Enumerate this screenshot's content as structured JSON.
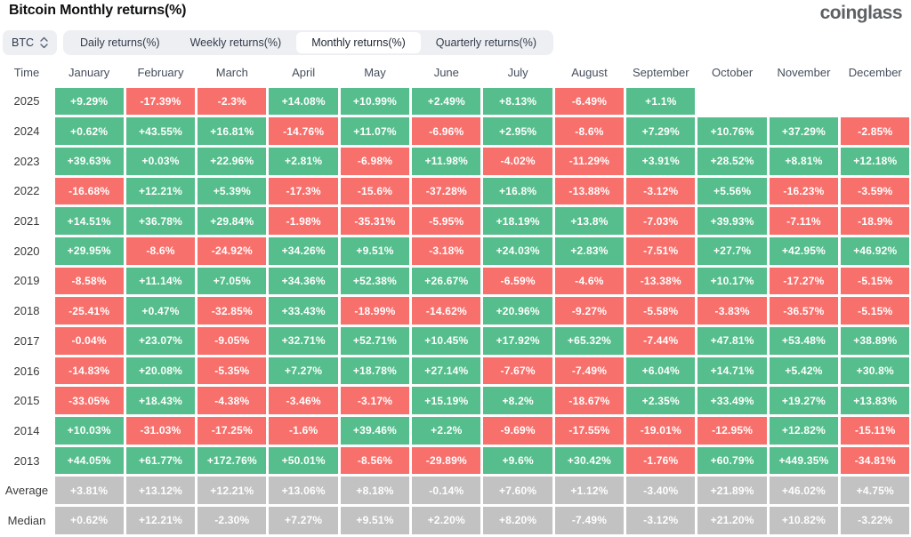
{
  "header": {
    "title": "Bitcoin Monthly returns(%)",
    "brand": "coinglass"
  },
  "controls": {
    "symbol": "BTC",
    "symbol_icon": "up-down-chevron-icon",
    "tabs": [
      {
        "label": "Daily returns(%)",
        "active": false
      },
      {
        "label": "Weekly returns(%)",
        "active": false
      },
      {
        "label": "Monthly returns(%)",
        "active": true
      },
      {
        "label": "Quarterly returns(%)",
        "active": false
      }
    ]
  },
  "colors": {
    "positive": "#55be8c",
    "negative": "#f7706c",
    "summary": "#c2c2c3",
    "tab_bg": "#edeff3",
    "active_tab_bg": "#ffffff"
  },
  "table": {
    "time_header": "Time"
  },
  "chart_data": {
    "type": "heatmap",
    "title": "Bitcoin Monthly returns(%)",
    "columns": [
      "January",
      "February",
      "March",
      "April",
      "May",
      "June",
      "July",
      "August",
      "September",
      "October",
      "November",
      "December"
    ],
    "rows": [
      {
        "label": "2025",
        "summary": false,
        "values": [
          "+9.29%",
          "-17.39%",
          "-2.3%",
          "+14.08%",
          "+10.99%",
          "+2.49%",
          "+8.13%",
          "-6.49%",
          "+1.1%",
          null,
          null,
          null
        ]
      },
      {
        "label": "2024",
        "summary": false,
        "values": [
          "+0.62%",
          "+43.55%",
          "+16.81%",
          "-14.76%",
          "+11.07%",
          "-6.96%",
          "+2.95%",
          "-8.6%",
          "+7.29%",
          "+10.76%",
          "+37.29%",
          "-2.85%"
        ]
      },
      {
        "label": "2023",
        "summary": false,
        "values": [
          "+39.63%",
          "+0.03%",
          "+22.96%",
          "+2.81%",
          "-6.98%",
          "+11.98%",
          "-4.02%",
          "-11.29%",
          "+3.91%",
          "+28.52%",
          "+8.81%",
          "+12.18%"
        ]
      },
      {
        "label": "2022",
        "summary": false,
        "values": [
          "-16.68%",
          "+12.21%",
          "+5.39%",
          "-17.3%",
          "-15.6%",
          "-37.28%",
          "+16.8%",
          "-13.88%",
          "-3.12%",
          "+5.56%",
          "-16.23%",
          "-3.59%"
        ]
      },
      {
        "label": "2021",
        "summary": false,
        "values": [
          "+14.51%",
          "+36.78%",
          "+29.84%",
          "-1.98%",
          "-35.31%",
          "-5.95%",
          "+18.19%",
          "+13.8%",
          "-7.03%",
          "+39.93%",
          "-7.11%",
          "-18.9%"
        ]
      },
      {
        "label": "2020",
        "summary": false,
        "values": [
          "+29.95%",
          "-8.6%",
          "-24.92%",
          "+34.26%",
          "+9.51%",
          "-3.18%",
          "+24.03%",
          "+2.83%",
          "-7.51%",
          "+27.7%",
          "+42.95%",
          "+46.92%"
        ]
      },
      {
        "label": "2019",
        "summary": false,
        "values": [
          "-8.58%",
          "+11.14%",
          "+7.05%",
          "+34.36%",
          "+52.38%",
          "+26.67%",
          "-6.59%",
          "-4.6%",
          "-13.38%",
          "+10.17%",
          "-17.27%",
          "-5.15%"
        ]
      },
      {
        "label": "2018",
        "summary": false,
        "values": [
          "-25.41%",
          "+0.47%",
          "-32.85%",
          "+33.43%",
          "-18.99%",
          "-14.62%",
          "+20.96%",
          "-9.27%",
          "-5.58%",
          "-3.83%",
          "-36.57%",
          "-5.15%"
        ]
      },
      {
        "label": "2017",
        "summary": false,
        "values": [
          "-0.04%",
          "+23.07%",
          "-9.05%",
          "+32.71%",
          "+52.71%",
          "+10.45%",
          "+17.92%",
          "+65.32%",
          "-7.44%",
          "+47.81%",
          "+53.48%",
          "+38.89%"
        ]
      },
      {
        "label": "2016",
        "summary": false,
        "values": [
          "-14.83%",
          "+20.08%",
          "-5.35%",
          "+7.27%",
          "+18.78%",
          "+27.14%",
          "-7.67%",
          "-7.49%",
          "+6.04%",
          "+14.71%",
          "+5.42%",
          "+30.8%"
        ]
      },
      {
        "label": "2015",
        "summary": false,
        "values": [
          "-33.05%",
          "+18.43%",
          "-4.38%",
          "-3.46%",
          "-3.17%",
          "+15.19%",
          "+8.2%",
          "-18.67%",
          "+2.35%",
          "+33.49%",
          "+19.27%",
          "+13.83%"
        ]
      },
      {
        "label": "2014",
        "summary": false,
        "values": [
          "+10.03%",
          "-31.03%",
          "-17.25%",
          "-1.6%",
          "+39.46%",
          "+2.2%",
          "-9.69%",
          "-17.55%",
          "-19.01%",
          "-12.95%",
          "+12.82%",
          "-15.11%"
        ]
      },
      {
        "label": "2013",
        "summary": false,
        "values": [
          "+44.05%",
          "+61.77%",
          "+172.76%",
          "+50.01%",
          "-8.56%",
          "-29.89%",
          "+9.6%",
          "+30.42%",
          "-1.76%",
          "+60.79%",
          "+449.35%",
          "-34.81%"
        ]
      },
      {
        "label": "Average",
        "summary": true,
        "values": [
          "+3.81%",
          "+13.12%",
          "+12.21%",
          "+13.06%",
          "+8.18%",
          "-0.14%",
          "+7.60%",
          "+1.12%",
          "-3.40%",
          "+21.89%",
          "+46.02%",
          "+4.75%"
        ]
      },
      {
        "label": "Median",
        "summary": true,
        "values": [
          "+0.62%",
          "+12.21%",
          "-2.30%",
          "+7.27%",
          "+9.51%",
          "+2.20%",
          "+8.20%",
          "-7.49%",
          "-3.12%",
          "+21.20%",
          "+10.82%",
          "-3.22%"
        ]
      }
    ]
  }
}
